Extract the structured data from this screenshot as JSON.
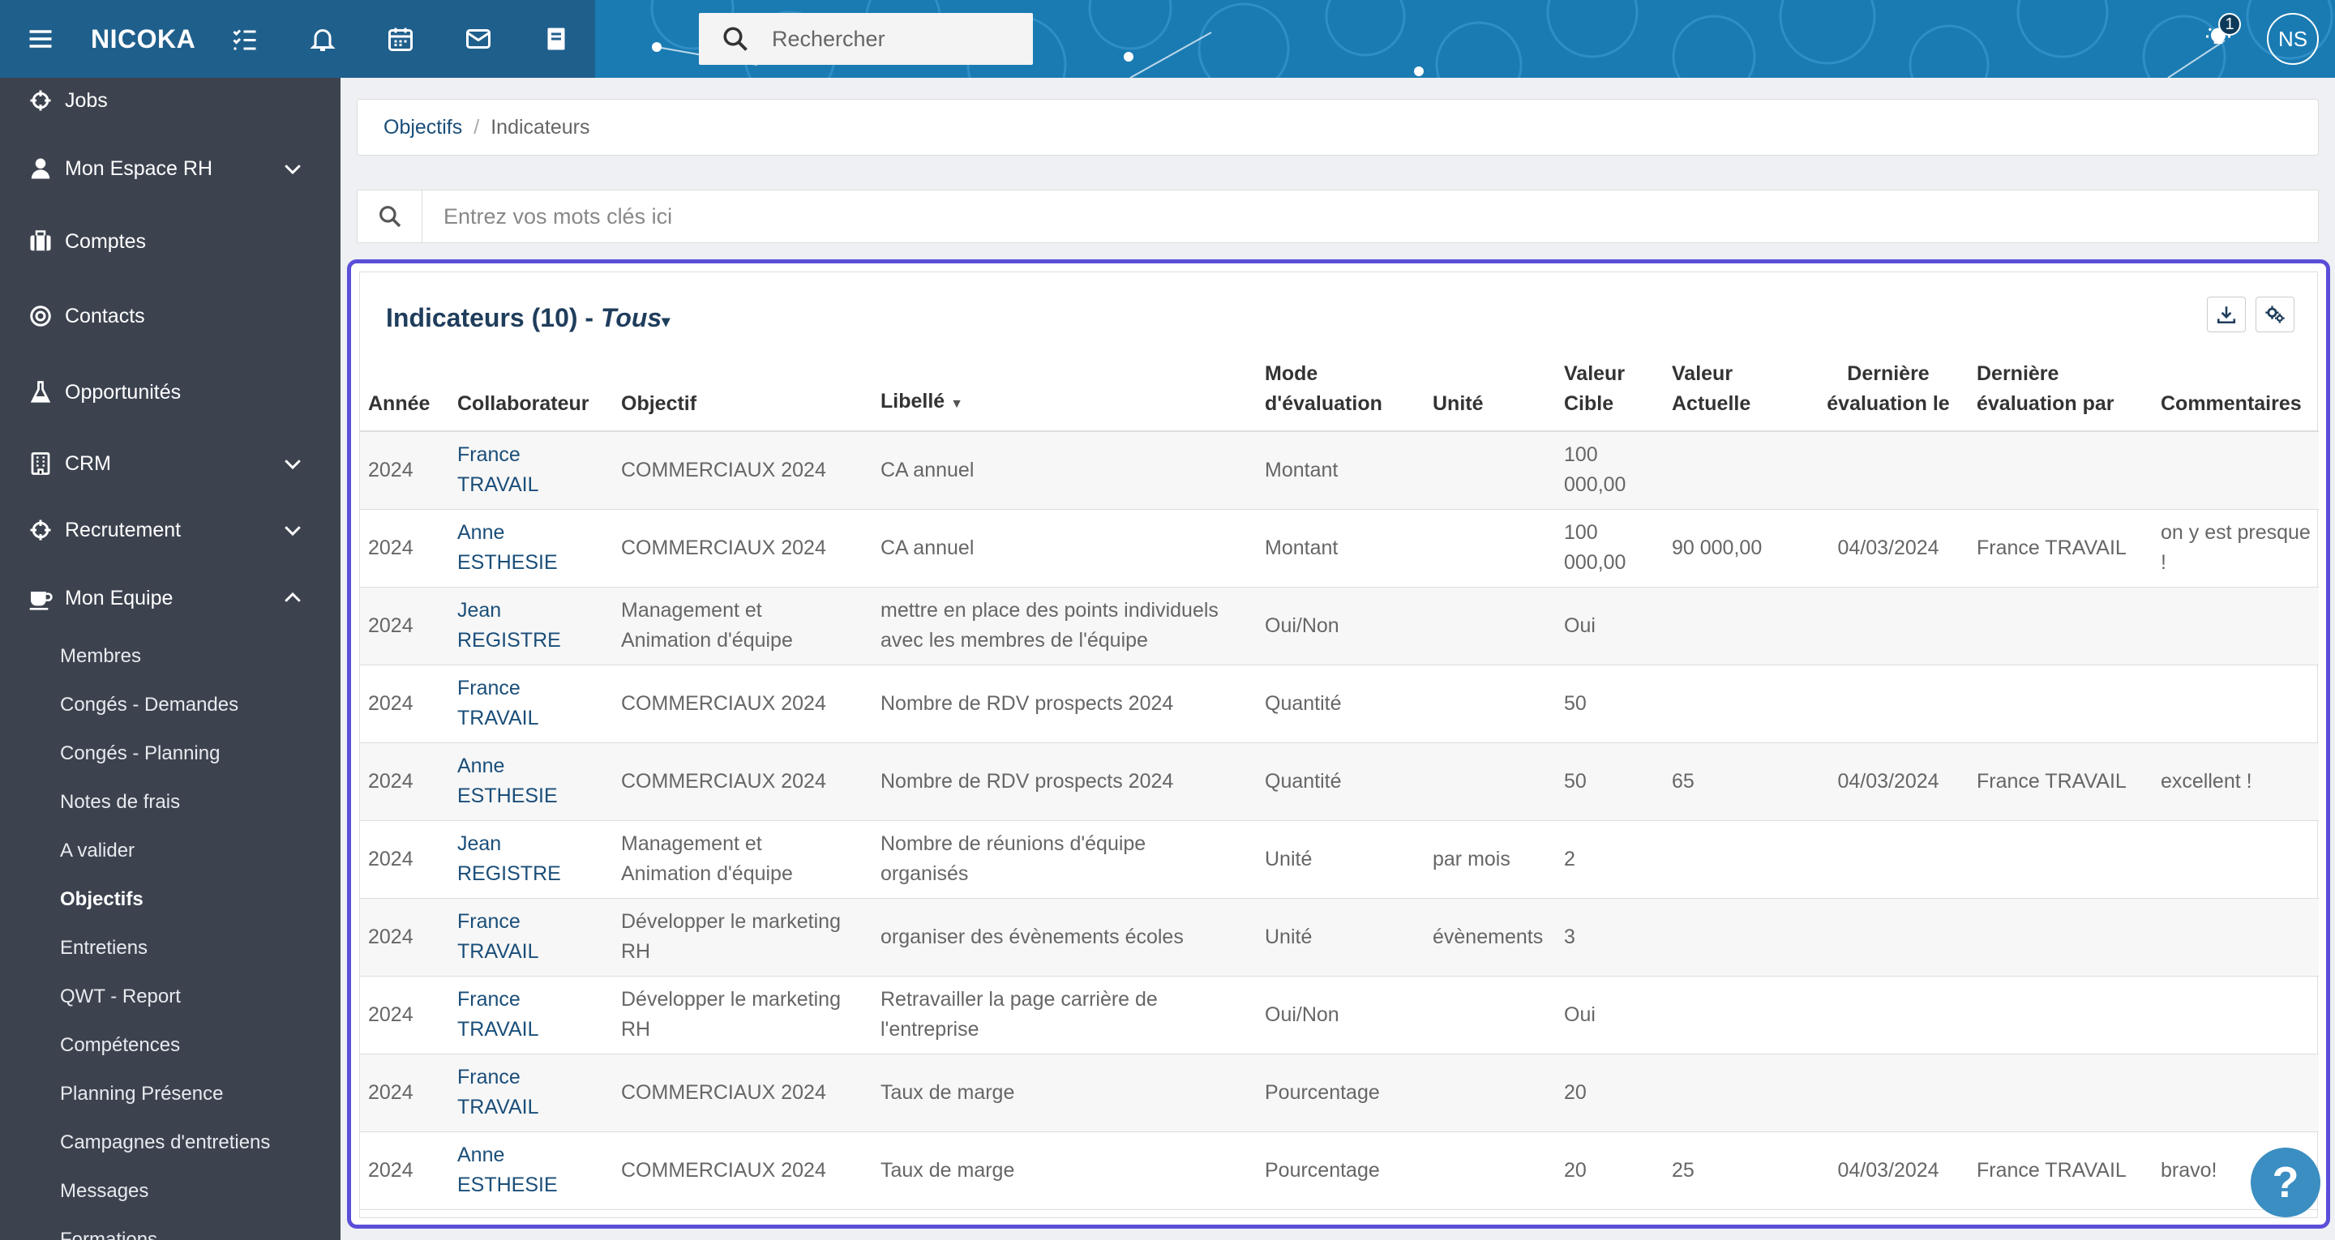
{
  "app": {
    "title": "NICOKA",
    "avatar_initials": "NS",
    "notification_count": "1",
    "search_placeholder": "Rechercher"
  },
  "sidebar": {
    "items": [
      {
        "label": "Jobs",
        "icon": "crosshair-icon"
      },
      {
        "label": "Mon Espace RH",
        "icon": "user-icon"
      },
      {
        "label": "Comptes",
        "icon": "briefcase-icon"
      },
      {
        "label": "Contacts",
        "icon": "target-icon"
      },
      {
        "label": "Opportunités",
        "icon": "flask-icon"
      },
      {
        "label": "CRM",
        "icon": "building-icon"
      },
      {
        "label": "Recrutement",
        "icon": "crosshair-icon"
      },
      {
        "label": "Mon Equipe",
        "icon": "coffee-icon"
      }
    ],
    "subitems": [
      "Membres",
      "Congés - Demandes",
      "Congés - Planning",
      "Notes de frais",
      "A valider",
      "Objectifs",
      "Entretiens",
      "QWT - Report",
      "Compétences",
      "Planning Présence",
      "Campagnes d'entretiens",
      "Messages",
      "Formations"
    ]
  },
  "breadcrumb": {
    "parent": "Objectifs",
    "separator": "/",
    "current": "Indicateurs"
  },
  "keywords": {
    "placeholder": "Entrez vos mots clés ici"
  },
  "panel": {
    "title": "Indicateurs (10) -",
    "filter": "Tous"
  },
  "table": {
    "headers": {
      "annee": "Année",
      "collab": "Collaborateur",
      "objectif": "Objectif",
      "libelle": "Libellé",
      "mode_1": "Mode",
      "mode_2": "d'évaluation",
      "unite": "Unité",
      "vcible_1": "Valeur",
      "vcible_2": "Cible",
      "vactuelle_1": "Valeur",
      "vactuelle_2": "Actuelle",
      "derle_1": "Dernière",
      "derle_2": "évaluation le",
      "derpar_1": "Dernière",
      "derpar_2": "évaluation par",
      "comment": "Commentaires"
    },
    "rows": [
      {
        "annee": "2024",
        "collab_1": "France",
        "collab_2": "TRAVAIL",
        "objectif_1": "COMMERCIAUX 2024",
        "objectif_2": "",
        "libelle_1": "CA annuel",
        "libelle_2": "",
        "mode": "Montant",
        "unite": "",
        "cible_1": "100",
        "cible_2": "000,00",
        "actuelle": "",
        "date": "",
        "par": "",
        "comment_1": "",
        "comment_2": ""
      },
      {
        "annee": "2024",
        "collab_1": "Anne",
        "collab_2": "ESTHESIE",
        "objectif_1": "COMMERCIAUX 2024",
        "objectif_2": "",
        "libelle_1": "CA annuel",
        "libelle_2": "",
        "mode": "Montant",
        "unite": "",
        "cible_1": "100",
        "cible_2": "000,00",
        "actuelle": "90 000,00",
        "date": "04/03/2024",
        "par": "France TRAVAIL",
        "comment_1": "on y est presque",
        "comment_2": "!"
      },
      {
        "annee": "2024",
        "collab_1": "Jean",
        "collab_2": "REGISTRE",
        "objectif_1": "Management et",
        "objectif_2": "Animation d'équipe",
        "libelle_1": "mettre en place des points individuels",
        "libelle_2": "avec les membres de l'équipe",
        "mode": "Oui/Non",
        "unite": "",
        "cible_1": "Oui",
        "cible_2": "",
        "actuelle": "",
        "date": "",
        "par": "",
        "comment_1": "",
        "comment_2": ""
      },
      {
        "annee": "2024",
        "collab_1": "France",
        "collab_2": "TRAVAIL",
        "objectif_1": "COMMERCIAUX 2024",
        "objectif_2": "",
        "libelle_1": "Nombre de RDV prospects 2024",
        "libelle_2": "",
        "mode": "Quantité",
        "unite": "",
        "cible_1": "50",
        "cible_2": "",
        "actuelle": "",
        "date": "",
        "par": "",
        "comment_1": "",
        "comment_2": ""
      },
      {
        "annee": "2024",
        "collab_1": "Anne",
        "collab_2": "ESTHESIE",
        "objectif_1": "COMMERCIAUX 2024",
        "objectif_2": "",
        "libelle_1": "Nombre de RDV prospects 2024",
        "libelle_2": "",
        "mode": "Quantité",
        "unite": "",
        "cible_1": "50",
        "cible_2": "",
        "actuelle": "65",
        "date": "04/03/2024",
        "par": "France TRAVAIL",
        "comment_1": "excellent !",
        "comment_2": ""
      },
      {
        "annee": "2024",
        "collab_1": "Jean",
        "collab_2": "REGISTRE",
        "objectif_1": "Management et",
        "objectif_2": "Animation d'équipe",
        "libelle_1": "Nombre de réunions d'équipe",
        "libelle_2": "organisés",
        "mode": "Unité",
        "unite": "par mois",
        "cible_1": "2",
        "cible_2": "",
        "actuelle": "",
        "date": "",
        "par": "",
        "comment_1": "",
        "comment_2": ""
      },
      {
        "annee": "2024",
        "collab_1": "France",
        "collab_2": "TRAVAIL",
        "objectif_1": "Développer le marketing",
        "objectif_2": "RH",
        "libelle_1": "organiser des évènements écoles",
        "libelle_2": "",
        "mode": "Unité",
        "unite": "évènements",
        "cible_1": "3",
        "cible_2": "",
        "actuelle": "",
        "date": "",
        "par": "",
        "comment_1": "",
        "comment_2": ""
      },
      {
        "annee": "2024",
        "collab_1": "France",
        "collab_2": "TRAVAIL",
        "objectif_1": "Développer le marketing",
        "objectif_2": "RH",
        "libelle_1": "Retravailler la page carrière de",
        "libelle_2": "l'entreprise",
        "mode": "Oui/Non",
        "unite": "",
        "cible_1": "Oui",
        "cible_2": "",
        "actuelle": "",
        "date": "",
        "par": "",
        "comment_1": "",
        "comment_2": ""
      },
      {
        "annee": "2024",
        "collab_1": "France",
        "collab_2": "TRAVAIL",
        "objectif_1": "COMMERCIAUX 2024",
        "objectif_2": "",
        "libelle_1": "Taux de marge",
        "libelle_2": "",
        "mode": "Pourcentage",
        "unite": "",
        "cible_1": "20",
        "cible_2": "",
        "actuelle": "",
        "date": "",
        "par": "",
        "comment_1": "",
        "comment_2": ""
      },
      {
        "annee": "2024",
        "collab_1": "Anne",
        "collab_2": "ESTHESIE",
        "objectif_1": "COMMERCIAUX 2024",
        "objectif_2": "",
        "libelle_1": "Taux de marge",
        "libelle_2": "",
        "mode": "Pourcentage",
        "unite": "",
        "cible_1": "20",
        "cible_2": "",
        "actuelle": "25",
        "date": "04/03/2024",
        "par": "France TRAVAIL",
        "comment_1": "bravo!",
        "comment_2": ""
      }
    ]
  },
  "help": {
    "label": "?"
  }
}
